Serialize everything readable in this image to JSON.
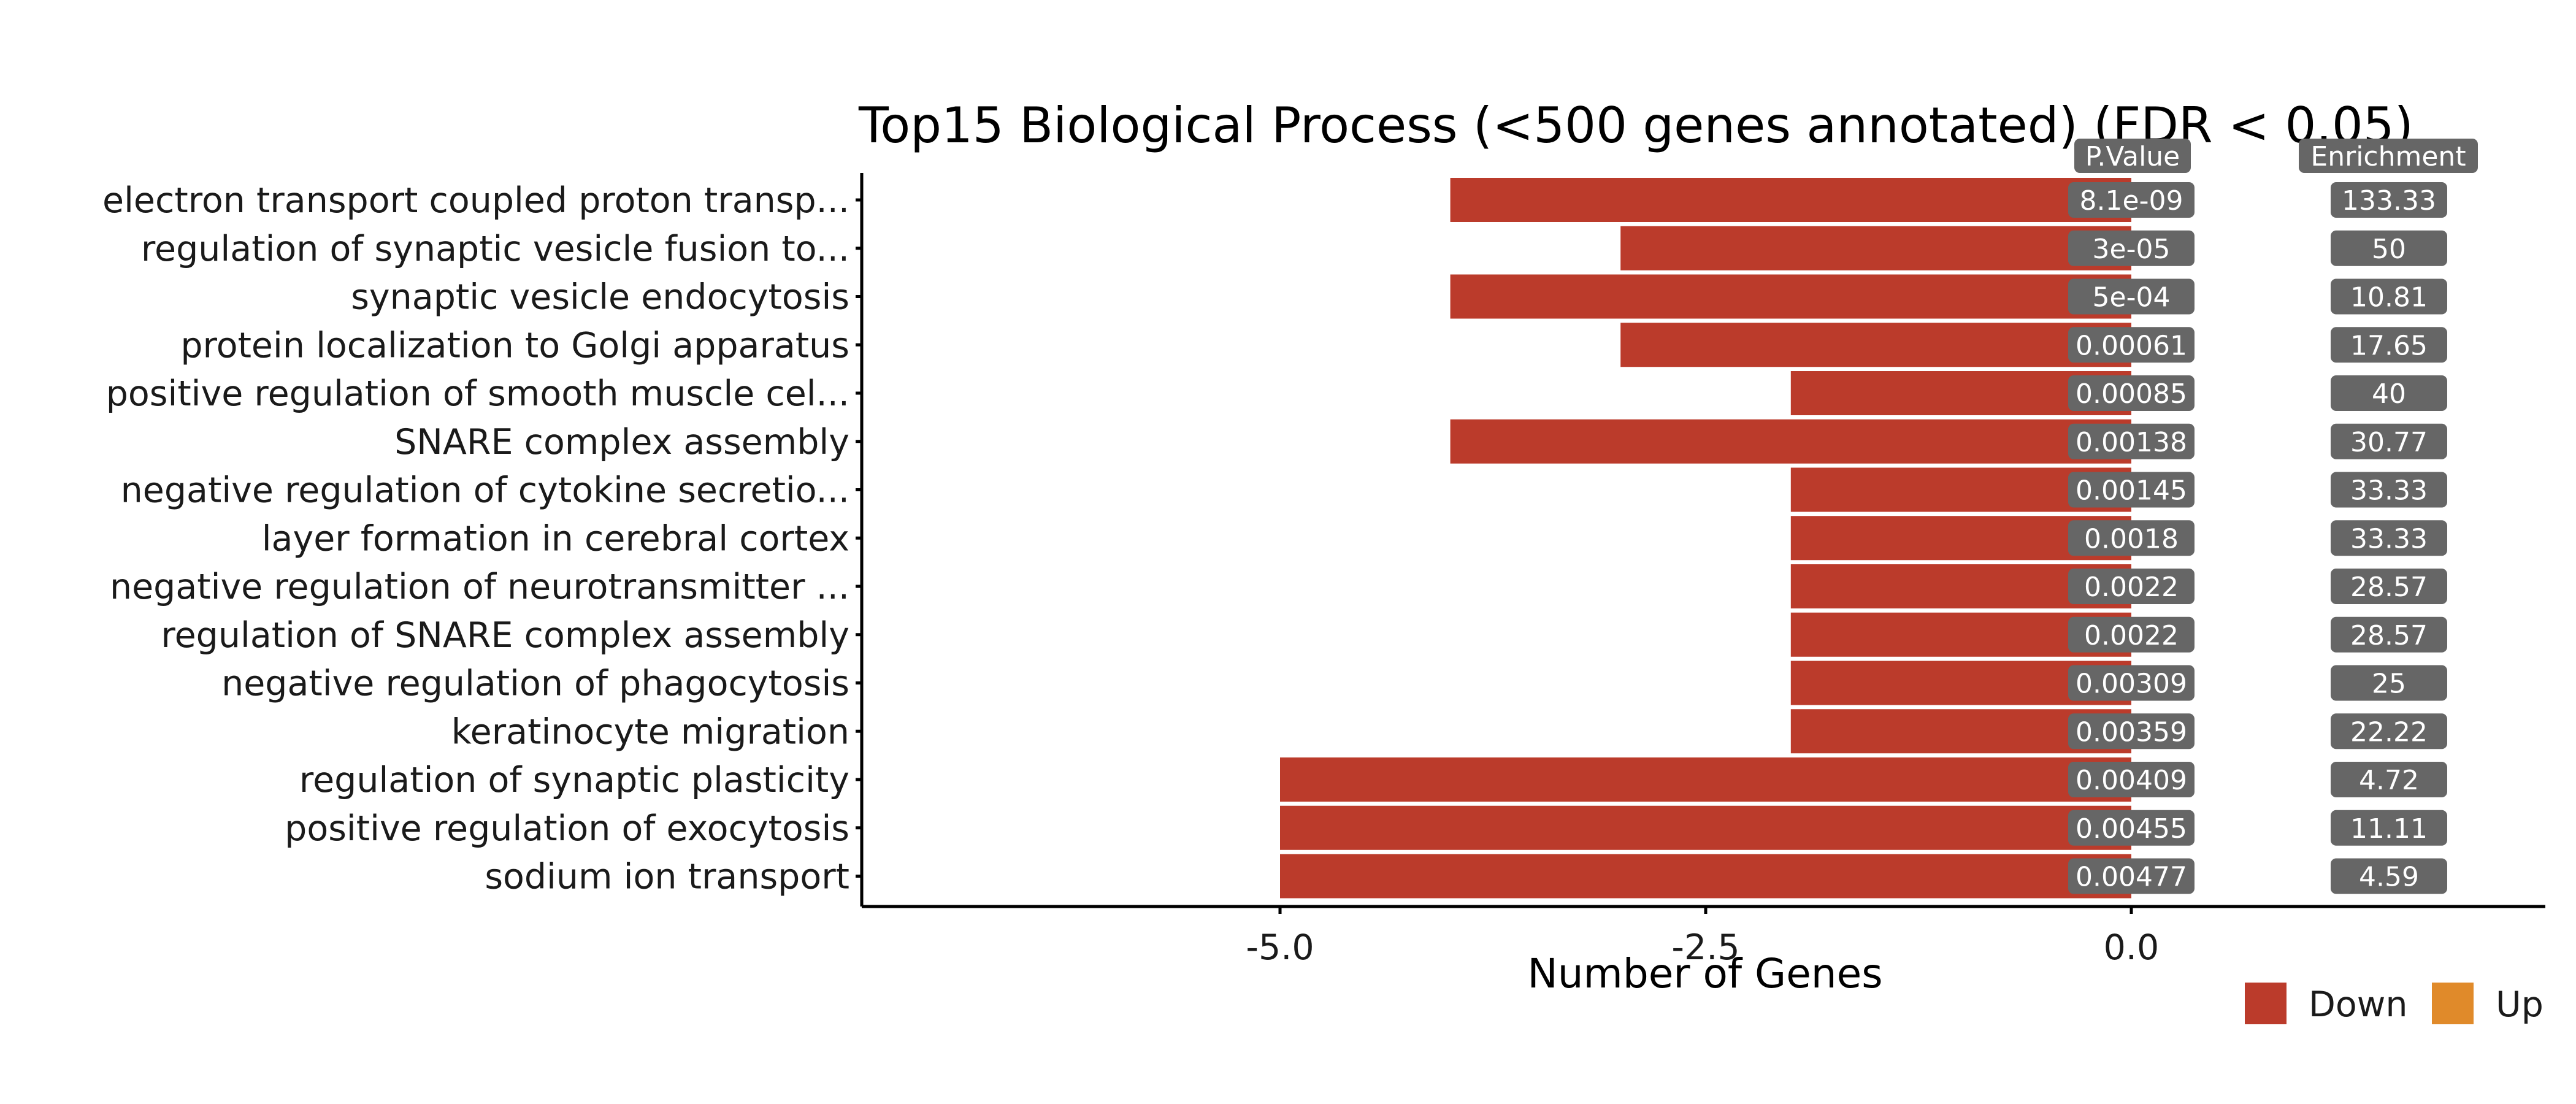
{
  "chart_data": {
    "type": "bar",
    "orientation": "horizontal",
    "title": "Top15 Biological Process (<500 genes annotated) (FDR < 0.05)",
    "xlabel": "Number of Genes",
    "ylabel": "",
    "xlim": [
      -7.0,
      0.0
    ],
    "xticks": [
      -5.0,
      -2.5,
      0.0
    ],
    "xtick_labels": [
      "-5.0",
      "-2.5",
      "0.0"
    ],
    "grid": false,
    "legend_position": "bottom-right",
    "legend": [
      {
        "label": "Down",
        "color": "#BB3B2B"
      },
      {
        "label": "Up",
        "color": "#E08A2A"
      }
    ],
    "pvalue_header": "P.Value",
    "enrichment_header": "Enrichment",
    "categories": [
      "electron transport coupled proton transp...",
      "regulation of synaptic vesicle fusion to...",
      "synaptic vesicle endocytosis",
      "protein localization to Golgi apparatus",
      "positive regulation of smooth muscle cel...",
      "SNARE complex assembly",
      "negative regulation of cytokine secretio...",
      "layer formation in cerebral cortex",
      "negative regulation of neurotransmitter ...",
      "regulation of SNARE complex assembly",
      "negative regulation of phagocytosis",
      "keratinocyte migration",
      "regulation of synaptic plasticity",
      "positive regulation of exocytosis",
      "sodium ion transport"
    ],
    "series": [
      {
        "name": "Down",
        "color": "#BB3B2B",
        "values": [
          -4,
          -3,
          -4,
          -3,
          -2,
          -4,
          -2,
          -2,
          -2,
          -2,
          -2,
          -2,
          -5,
          -5,
          -5
        ]
      }
    ],
    "pvalues": [
      "8.1e-09",
      "3e-05",
      "5e-04",
      "0.00061",
      "0.00085",
      "0.00138",
      "0.00145",
      "0.0018",
      "0.0022",
      "0.0022",
      "0.00309",
      "0.00359",
      "0.00409",
      "0.00455",
      "0.00477"
    ],
    "enrichment": [
      "133.33",
      "50",
      "10.81",
      "17.65",
      "40",
      "30.77",
      "33.33",
      "33.33",
      "28.57",
      "28.57",
      "25",
      "22.22",
      "4.72",
      "11.11",
      "4.59"
    ],
    "label_box_color": "#666666",
    "axis_color": "#000000"
  }
}
